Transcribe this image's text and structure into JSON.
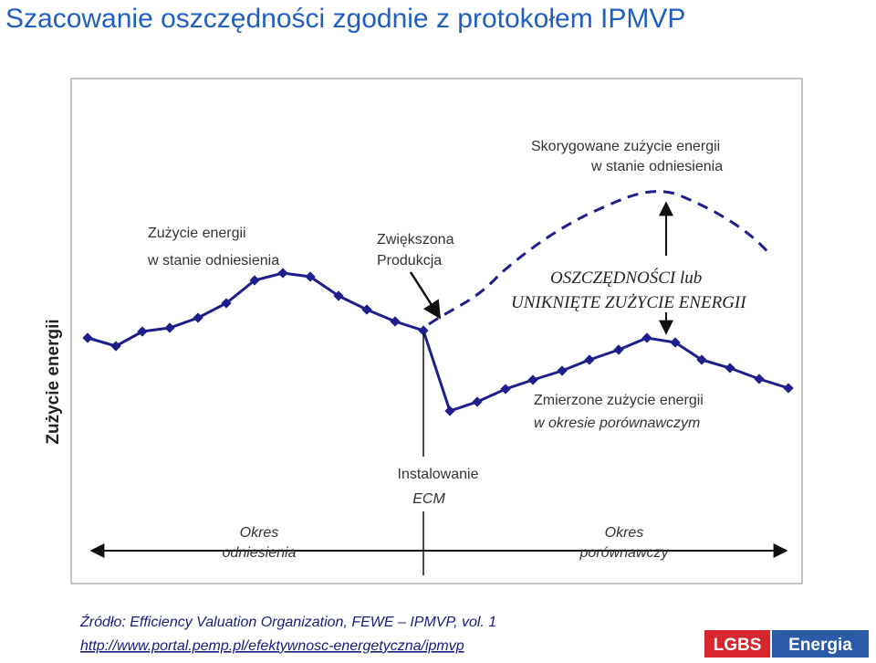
{
  "header": {
    "title": "Szacowanie oszczędności zgodnie z protokołem IPMVP"
  },
  "diagram": {
    "y_axis_label": "Zużycie energii",
    "labels": [
      {
        "lines": [
          "Skorygowane zużycie energii",
          "w stanie odniesienia"
        ]
      },
      {
        "lines": [
          "Zużycie energii",
          "w stanie odniesienia"
        ]
      },
      {
        "lines": [
          "Zwiększona",
          "Produkcja"
        ]
      },
      {
        "lines": [
          "OSZCZĘDNOŚCI lub",
          "UNIKNIĘTE ZUŻYCIE ENERGII"
        ]
      },
      {
        "lines": [
          "Zmierzone zużycie energii",
          "w  okresie porównawczym"
        ]
      },
      {
        "lines": [
          "Instalowanie",
          "ECM"
        ]
      },
      {
        "lines": [
          "Okres",
          "odniesienia"
        ]
      },
      {
        "lines": [
          "Okres",
          "porównawczy"
        ]
      }
    ]
  },
  "footer": {
    "source": "Źródło: Efficiency Valuation Organization, FEWE – IPMVP, vol. 1",
    "url": "http://www.portal.pemp.pl/efektywnosc-energetyczna/ipmvp",
    "logo": [
      "LGBS",
      "Energia"
    ]
  }
}
